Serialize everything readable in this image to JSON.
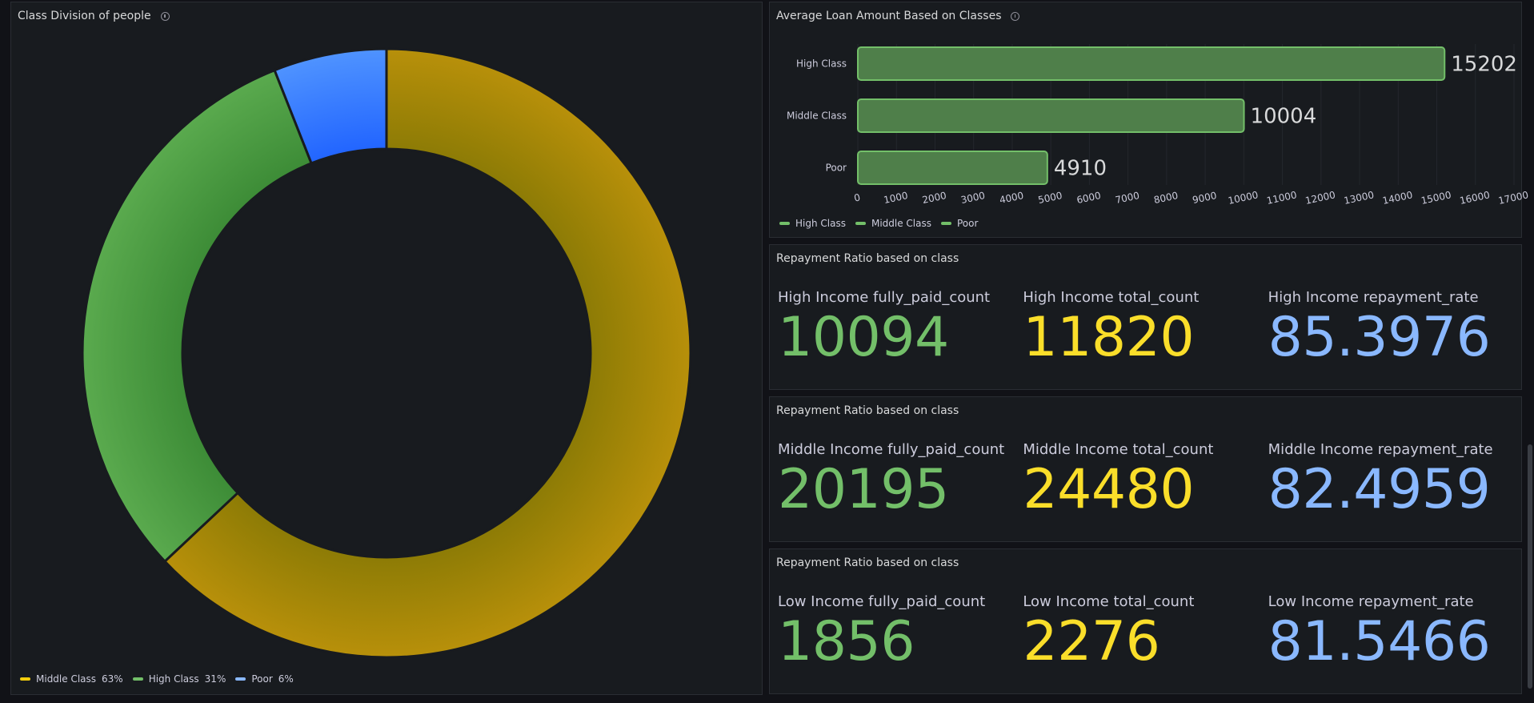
{
  "donut_panel": {
    "title": "Class Division of people",
    "legend": [
      {
        "label": "Middle Class",
        "pct": "63%",
        "color": "#f2cc0c"
      },
      {
        "label": "High Class",
        "pct": "31%",
        "color": "#73bf69"
      },
      {
        "label": "Poor",
        "pct": "6%",
        "color": "#8ab8ff"
      }
    ]
  },
  "bar_panel": {
    "title": "Average Loan Amount Based on Classes",
    "legend": [
      {
        "label": "High Class"
      },
      {
        "label": "Middle Class"
      },
      {
        "label": "Poor"
      }
    ]
  },
  "stat_panels": [
    {
      "title": "Repayment Ratio based on class",
      "stats": [
        {
          "label": "High Income fully_paid_count",
          "value": "10094",
          "color": "#73bf69"
        },
        {
          "label": "High Income total_count",
          "value": "11820",
          "color": "#fade2a"
        },
        {
          "label": "High Income repayment_rate",
          "value": "85.3976",
          "color": "#8ab8ff"
        }
      ]
    },
    {
      "title": "Repayment Ratio based on class",
      "stats": [
        {
          "label": "Middle Income fully_paid_count",
          "value": "20195",
          "color": "#73bf69"
        },
        {
          "label": "Middle Income total_count",
          "value": "24480",
          "color": "#fade2a"
        },
        {
          "label": "Middle Income repayment_rate",
          "value": "82.4959",
          "color": "#8ab8ff"
        }
      ]
    },
    {
      "title": "Repayment Ratio based on class",
      "stats": [
        {
          "label": "Low Income fully_paid_count",
          "value": "1856",
          "color": "#73bf69"
        },
        {
          "label": "Low Income total_count",
          "value": "2276",
          "color": "#fade2a"
        },
        {
          "label": "Low Income repayment_rate",
          "value": "81.5466",
          "color": "#8ab8ff"
        }
      ]
    }
  ],
  "chart_data": [
    {
      "type": "pie",
      "title": "Class Division of people",
      "categories": [
        "Middle Class",
        "High Class",
        "Poor"
      ],
      "values": [
        63,
        31,
        6
      ],
      "colors": [
        "#b8900a",
        "#56a64b",
        "#1f6fff"
      ],
      "legend_position": "bottom-left"
    },
    {
      "type": "bar",
      "orientation": "horizontal",
      "title": "Average Loan Amount Based on Classes",
      "categories": [
        "High Class",
        "Middle Class",
        "Poor"
      ],
      "values": [
        15202,
        10004,
        4910
      ],
      "xlim": [
        0,
        17000
      ],
      "xticks": [
        0,
        1000,
        2000,
        3000,
        4000,
        5000,
        6000,
        7000,
        8000,
        9000,
        10000,
        11000,
        12000,
        13000,
        14000,
        15000,
        16000,
        17000
      ],
      "grid": true,
      "legend_position": "bottom-left",
      "bar_color": "#4f7f4a",
      "bar_border": "#73bf69"
    }
  ]
}
